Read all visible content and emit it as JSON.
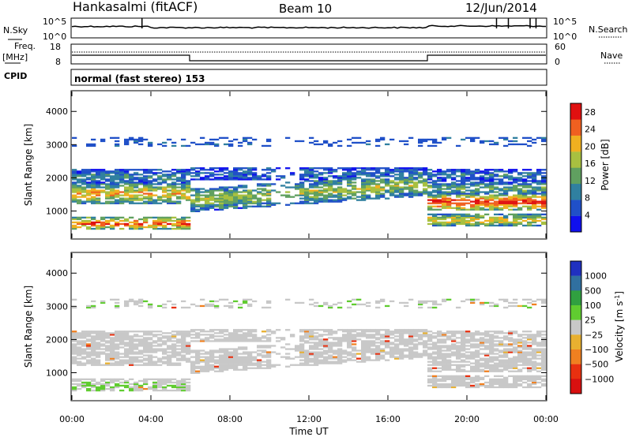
{
  "header": {
    "station": "Hankasalmi (fitACF)",
    "beam": "Beam 10",
    "date": "12/Jun/2014"
  },
  "noise_panel": {
    "left_label": "N.Sky",
    "left_ticks": [
      "10^5",
      "10^0"
    ],
    "right_label": "N.Search",
    "right_ticks": [
      "10^5",
      "10^0"
    ]
  },
  "freq_panel": {
    "left_label_1": "Freq.",
    "left_label_2": "[MHz]",
    "left_ticks": [
      "18",
      "8"
    ],
    "right_label": "Nave",
    "right_ticks": [
      "60",
      "0"
    ]
  },
  "cpid_panel": {
    "label": "CPID",
    "text": "normal (fast stereo) 153"
  },
  "chart_data": [
    {
      "type": "heatmap",
      "title": "",
      "xlabel": "Time UT",
      "ylabel": "Slant Range [km]",
      "x_ticks": [
        "00:00",
        "04:00",
        "08:00",
        "12:00",
        "16:00",
        "20:00",
        "00:00"
      ],
      "x_range_hours": [
        0,
        24
      ],
      "y_ticks": [
        "1000",
        "2000",
        "3000",
        "4000"
      ],
      "ylim": [
        180,
        4600
      ],
      "colorbar": {
        "label": "Power [dB]",
        "ticks": [
          "4",
          "8",
          "12",
          "16",
          "20",
          "24",
          "28"
        ],
        "range": [
          0,
          30
        ],
        "colors": [
          "#1010ee",
          "#2050c8",
          "#3080a0",
          "#60a060",
          "#a8c040",
          "#f0b020",
          "#f06020",
          "#e01010"
        ]
      }
    },
    {
      "type": "heatmap",
      "title": "",
      "xlabel": "Time UT",
      "ylabel": "Slant Range [km]",
      "x_ticks": [
        "00:00",
        "04:00",
        "08:00",
        "12:00",
        "16:00",
        "20:00",
        "00:00"
      ],
      "x_range_hours": [
        0,
        24
      ],
      "y_ticks": [
        "1000",
        "2000",
        "3000",
        "4000"
      ],
      "ylim": [
        180,
        4600
      ],
      "colorbar": {
        "label_main": "Velocity",
        "label_unit": "[m s",
        "label_exp": "-1",
        "label_close": "]",
        "ticks": [
          "1000",
          "500",
          "100",
          "25",
          "−25",
          "−100",
          "−500",
          "−1000"
        ],
        "colors": [
          "#2030c0",
          "#3070a0",
          "#30a040",
          "#60cc30",
          "#c8c8c8",
          "#e8b030",
          "#f08020",
          "#e83010",
          "#d81010"
        ]
      }
    }
  ]
}
